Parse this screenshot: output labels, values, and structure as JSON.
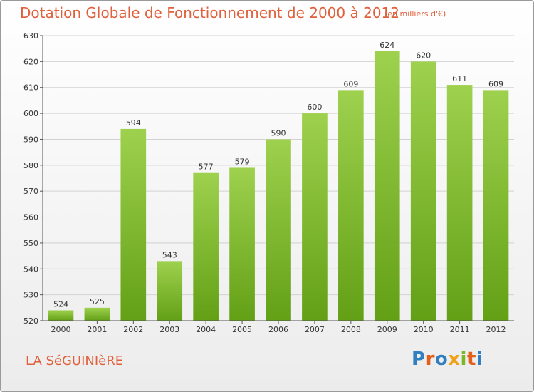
{
  "header": {
    "title": "Dotation Globale de Fonctionnement de 2000 à 2012",
    "subtitle": "(en milliers d'€)"
  },
  "footer": {
    "commune": "LA SéGUINIèRE",
    "logo_text": "Proxiti",
    "logo_colors": [
      "#2f7fc1",
      "#e35f1c",
      "#2f7fc1",
      "#f0a21a",
      "#7ab829",
      "#e35f1c",
      "#2f7fc1"
    ]
  },
  "chart_data": {
    "type": "bar",
    "categories": [
      "2000",
      "2001",
      "2002",
      "2003",
      "2004",
      "2005",
      "2006",
      "2007",
      "2008",
      "2009",
      "2010",
      "2011",
      "2012"
    ],
    "values": [
      524,
      525,
      594,
      543,
      577,
      579,
      590,
      600,
      609,
      624,
      620,
      611,
      609
    ],
    "ylim": [
      520,
      630
    ],
    "yticks": [
      520,
      530,
      540,
      550,
      560,
      570,
      580,
      590,
      600,
      610,
      620,
      630
    ],
    "xlabel": "",
    "ylabel": "",
    "grid": true,
    "bar_color_top": "#9ed14e",
    "bar_color_bottom": "#63a016",
    "data_labels": true
  }
}
